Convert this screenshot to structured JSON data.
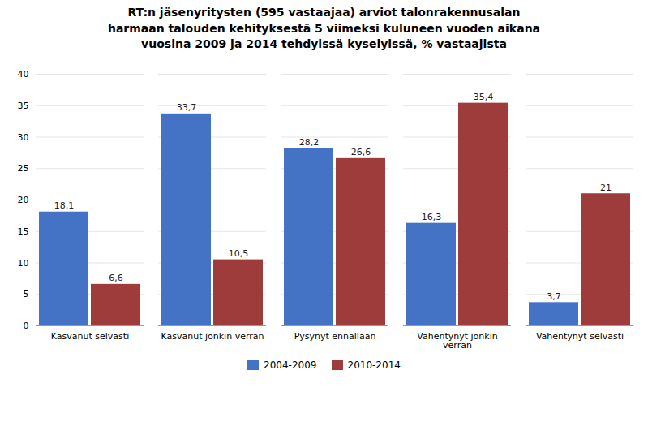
{
  "chart_data": {
    "type": "bar",
    "title": "RT:n jäsenyritysten (595 vastaajaa) arviot talonrakennusalan\nharmaan talouden kehityksestä 5 viimeksi kuluneen vuoden aikana\nvuosina 2009 ja 2014 tehdyissä kyselyissä, % vastaajista",
    "categories": [
      "Kasvanut selvästi",
      "Kasvanut jonkin verran",
      "Pysynyt ennallaan",
      "Vähentynyt jonkin\nverran",
      "Vähentynyt selvästi"
    ],
    "series": [
      {
        "name": "2004-2009",
        "color": "#4472C4",
        "values": [
          18.1,
          33.7,
          28.2,
          16.3,
          3.7
        ],
        "value_labels": [
          "18,1",
          "33,7",
          "28,2",
          "16,3",
          "3,7"
        ]
      },
      {
        "name": "2010-2014",
        "color": "#9E3B3B",
        "values": [
          6.6,
          10.5,
          26.6,
          35.4,
          21.0
        ],
        "value_labels": [
          "6,6",
          "10,5",
          "26,6",
          "35,4",
          "21"
        ]
      }
    ],
    "ylim": [
      0,
      40
    ],
    "yticks": [
      0,
      5,
      10,
      15,
      20,
      25,
      30,
      35,
      40
    ],
    "grid": true,
    "data_labels": true,
    "legend": "bottom"
  }
}
